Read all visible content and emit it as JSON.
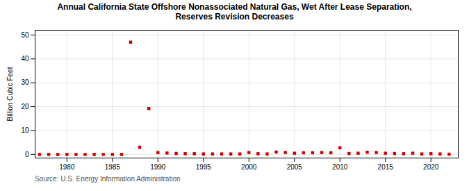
{
  "chart_data": {
    "type": "scatter",
    "title": "Annual California State Offshore Nonassociated Natural Gas, Wet After Lease Separation,\nReserves Revision Decreases",
    "ylabel": "Billion Cubic Feet",
    "source": "Source: U.S. Energy Information Administration",
    "x": [
      1977,
      1978,
      1979,
      1980,
      1981,
      1982,
      1983,
      1984,
      1985,
      1986,
      1987,
      1988,
      1989,
      1990,
      1991,
      1992,
      1993,
      1994,
      1995,
      1996,
      1997,
      1998,
      1999,
      2000,
      2001,
      2002,
      2003,
      2004,
      2005,
      2006,
      2007,
      2008,
      2009,
      2010,
      2011,
      2012,
      2013,
      2014,
      2015,
      2016,
      2017,
      2018,
      2019,
      2020,
      2021,
      2022
    ],
    "values": [
      0.0,
      0.0,
      0.0,
      0.0,
      0.0,
      0.0,
      0.0,
      0.0,
      0.0,
      0.0,
      47.0,
      3.0,
      19.2,
      0.8,
      0.6,
      0.4,
      0.3,
      0.3,
      0.2,
      0.2,
      0.2,
      0.2,
      0.2,
      0.8,
      0.3,
      0.2,
      1.0,
      0.8,
      0.5,
      0.7,
      0.7,
      0.8,
      0.7,
      2.8,
      0.4,
      0.5,
      0.9,
      0.8,
      0.5,
      0.4,
      0.3,
      0.5,
      0.2,
      0.3,
      0.2,
      0.1
    ],
    "color": "#cc0000",
    "marker": "square",
    "xlim": [
      1976.5,
      2023
    ],
    "ylim": [
      -1.5,
      52
    ],
    "xticks": [
      1980,
      1985,
      1990,
      1995,
      2000,
      2005,
      2010,
      2015,
      2020
    ],
    "yticks": [
      0,
      10,
      20,
      30,
      40,
      50
    ],
    "grid": true
  }
}
